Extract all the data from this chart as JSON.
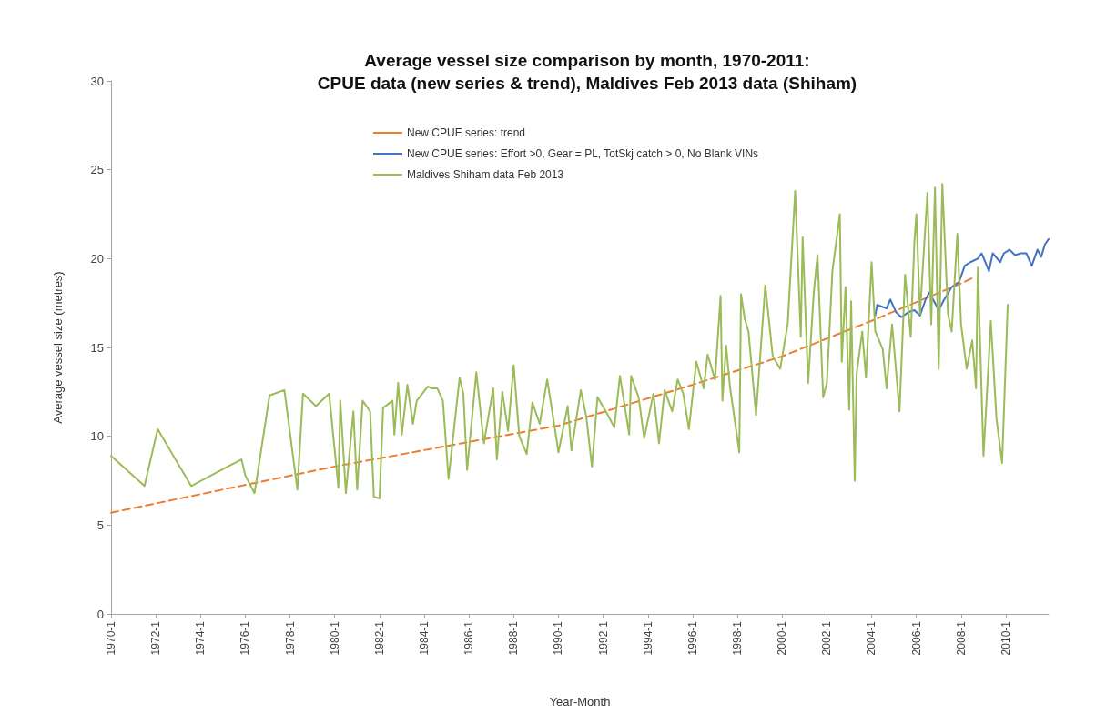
{
  "chart_data": {
    "type": "line",
    "title": "Average vessel size comparison by month, 1970-2011:",
    "subtitle": "CPUE data (new series & trend), Maldives Feb 2013 data (Shiham)",
    "xlabel": "Year-Month",
    "ylabel": "Average vessel size (metres)",
    "xlim": [
      "1970-01",
      "2011-12"
    ],
    "xticks": [
      {
        "value": "1970-01",
        "label": "1970-1"
      },
      {
        "value": "1972-01",
        "label": "1972-1"
      },
      {
        "value": "1974-01",
        "label": "1974-1"
      },
      {
        "value": "1976-01",
        "label": "1976-1"
      },
      {
        "value": "1978-01",
        "label": "1978-1"
      },
      {
        "value": "1980-01",
        "label": "1980-1"
      },
      {
        "value": "1982-01",
        "label": "1982-1"
      },
      {
        "value": "1984-01",
        "label": "1984-1"
      },
      {
        "value": "1986-01",
        "label": "1986-1"
      },
      {
        "value": "1988-01",
        "label": "1988-1"
      },
      {
        "value": "1990-01",
        "label": "1990-1"
      },
      {
        "value": "1992-01",
        "label": "1992-1"
      },
      {
        "value": "1994-01",
        "label": "1994-1"
      },
      {
        "value": "1996-01",
        "label": "1996-1"
      },
      {
        "value": "1998-01",
        "label": "1998-1"
      },
      {
        "value": "2000-01",
        "label": "2000-1"
      },
      {
        "value": "2002-01",
        "label": "2002-1"
      },
      {
        "value": "2004-01",
        "label": "2004-1"
      },
      {
        "value": "2006-01",
        "label": "2006-1"
      },
      {
        "value": "2008-01",
        "label": "2008-1"
      },
      {
        "value": "2010-01",
        "label": "2010-1"
      }
    ],
    "ylim": [
      0,
      30
    ],
    "yticks": [
      0,
      5,
      10,
      15,
      20,
      25,
      30
    ],
    "grid": false,
    "legend": "top",
    "marker": "none",
    "series": [
      {
        "name": "New CPUE series: trend",
        "color": "#ed7d31",
        "line_style": "dashed",
        "x": [
          "1970-01",
          "1980-01",
          "1990-01",
          "1996-01",
          "2000-01",
          "2004-01",
          "2008-01",
          "2008-07"
        ],
        "values": [
          5.7,
          8.3,
          10.6,
          12.9,
          14.5,
          16.5,
          18.6,
          18.9
        ]
      },
      {
        "name": "New CPUE series: Effort >0, Gear = PL, TotSkj catch > 0, No Blank VINs",
        "color": "#4472c4",
        "line_style": "solid",
        "x": [
          "2004-03",
          "2004-04",
          "2004-09",
          "2004-11",
          "2005-02",
          "2005-05",
          "2005-09",
          "2005-12",
          "2006-03",
          "2006-06",
          "2006-08",
          "2007-01",
          "2007-04",
          "2007-08",
          "2007-12",
          "2008-03",
          "2008-06",
          "2008-10",
          "2008-12",
          "2009-04",
          "2009-06",
          "2009-10",
          "2009-12",
          "2010-03",
          "2010-06",
          "2010-09",
          "2010-12",
          "2011-03",
          "2011-06",
          "2011-08",
          "2011-10",
          "2011-12"
        ],
        "values": [
          16.8,
          17.4,
          17.2,
          17.7,
          17.0,
          16.7,
          17.0,
          17.1,
          16.8,
          17.7,
          18.1,
          17.1,
          17.7,
          18.4,
          18.7,
          19.6,
          19.8,
          20.0,
          20.3,
          19.3,
          20.3,
          19.8,
          20.3,
          20.5,
          20.2,
          20.3,
          20.3,
          19.6,
          20.5,
          20.1,
          20.8,
          21.1
        ]
      },
      {
        "name": "Maldives Shiham data Feb 2013",
        "color": "#9bbb59",
        "line_style": "solid",
        "x": [
          "1970-01",
          "1971-07",
          "1972-02",
          "1973-08",
          "1975-11",
          "1976-01",
          "1976-06",
          "1977-02",
          "1977-10",
          "1978-05",
          "1978-08",
          "1979-03",
          "1979-10",
          "1980-03",
          "1980-04",
          "1980-07",
          "1980-11",
          "1981-01",
          "1981-04",
          "1981-08",
          "1981-10",
          "1982-01",
          "1982-03",
          "1982-08",
          "1982-09",
          "1982-11",
          "1983-01",
          "1983-04",
          "1983-07",
          "1983-09",
          "1984-03",
          "1984-05",
          "1984-08",
          "1984-11",
          "1985-02",
          "1985-08",
          "1985-10",
          "1985-12",
          "1986-05",
          "1986-09",
          "1987-02",
          "1987-04",
          "1987-07",
          "1987-10",
          "1988-01",
          "1988-04",
          "1988-08",
          "1988-11",
          "1989-03",
          "1989-07",
          "1989-11",
          "1990-01",
          "1990-06",
          "1990-08",
          "1991-01",
          "1991-04",
          "1991-07",
          "1991-10",
          "1992-03",
          "1992-07",
          "1992-10",
          "1993-03",
          "1993-04",
          "1993-08",
          "1993-11",
          "1994-04",
          "1994-07",
          "1994-10",
          "1995-02",
          "1995-05",
          "1995-08",
          "1995-11",
          "1996-03",
          "1996-07",
          "1996-09",
          "1997-01",
          "1997-04",
          "1997-05",
          "1997-07",
          "1997-09",
          "1998-02",
          "1998-03",
          "1998-05",
          "1998-07",
          "1998-11",
          "1999-04",
          "1999-08",
          "1999-12",
          "2000-04",
          "2000-08",
          "2000-11",
          "2000-12",
          "2001-03",
          "2001-06",
          "2001-08",
          "2001-11",
          "2002-01",
          "2002-04",
          "2002-08",
          "2002-09",
          "2002-11",
          "2003-01",
          "2003-02",
          "2003-04",
          "2003-05",
          "2003-08",
          "2003-10",
          "2004-01",
          "2004-03",
          "2004-07",
          "2004-09",
          "2004-12",
          "2005-04",
          "2005-07",
          "2005-10",
          "2005-12",
          "2006-01",
          "2006-03",
          "2006-07",
          "2006-09",
          "2006-11",
          "2007-01",
          "2007-03",
          "2007-06",
          "2007-08",
          "2007-11",
          "2008-01",
          "2008-04",
          "2008-07",
          "2008-09",
          "2008-10",
          "2009-01",
          "2009-04",
          "2009-05",
          "2009-08",
          "2009-11",
          "2010-02"
        ],
        "values": [
          8.9,
          7.2,
          10.4,
          7.2,
          8.7,
          7.8,
          6.8,
          12.3,
          12.6,
          7.0,
          12.4,
          11.7,
          12.4,
          7.1,
          12.0,
          6.8,
          11.4,
          7.0,
          12.0,
          11.4,
          6.6,
          6.5,
          11.6,
          12.0,
          10.1,
          13.0,
          10.1,
          12.9,
          10.7,
          12.0,
          12.8,
          12.7,
          12.7,
          12.0,
          7.6,
          13.3,
          12.4,
          8.1,
          13.6,
          9.6,
          12.7,
          8.7,
          12.5,
          10.3,
          14.0,
          10.0,
          9.0,
          11.9,
          10.7,
          13.2,
          10.5,
          9.1,
          11.7,
          9.2,
          12.6,
          11.1,
          8.3,
          12.2,
          11.3,
          10.5,
          13.4,
          10.1,
          13.4,
          12.2,
          9.9,
          12.4,
          9.6,
          12.6,
          11.4,
          13.2,
          12.4,
          10.4,
          14.2,
          12.7,
          14.6,
          13.2,
          17.9,
          12.0,
          15.1,
          12.8,
          9.1,
          18.0,
          16.6,
          15.9,
          11.2,
          18.5,
          14.5,
          13.8,
          16.3,
          23.8,
          15.6,
          21.2,
          13.0,
          18.1,
          20.2,
          12.2,
          13.0,
          19.3,
          22.5,
          14.2,
          18.4,
          11.5,
          17.6,
          7.5,
          13.5,
          15.9,
          13.3,
          19.8,
          15.9,
          14.9,
          12.7,
          16.3,
          11.4,
          19.1,
          15.6,
          21.0,
          22.5,
          16.9,
          23.7,
          16.3,
          24.0,
          13.8,
          24.2,
          16.9,
          15.9,
          21.4,
          16.3,
          13.8,
          15.4,
          12.7,
          19.5,
          8.9,
          14.5,
          16.5,
          11.0,
          8.5,
          17.4
        ]
      }
    ]
  }
}
